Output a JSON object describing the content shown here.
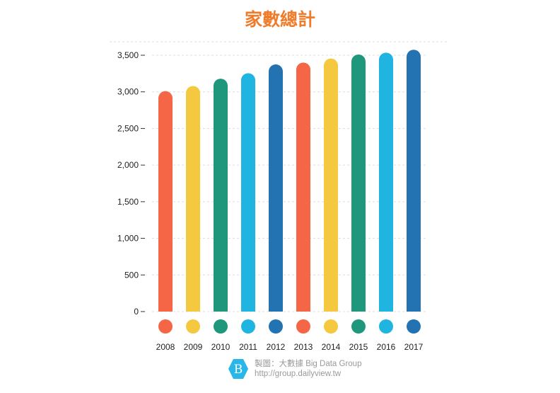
{
  "chart_data": {
    "type": "bar",
    "title": "家數總計",
    "categories": [
      "2008",
      "2009",
      "2010",
      "2011",
      "2012",
      "2013",
      "2014",
      "2015",
      "2016",
      "2017"
    ],
    "values": [
      3010,
      3080,
      3180,
      3255,
      3375,
      3400,
      3455,
      3510,
      3535,
      3575
    ],
    "colors": [
      "#f46645",
      "#f4c93f",
      "#1e977d",
      "#1fb5e0",
      "#2373b2",
      "#f46645",
      "#f4c93f",
      "#1e977d",
      "#1fb5e0",
      "#2373b2"
    ],
    "ylim": [
      0,
      3500
    ],
    "yticks": [
      "0",
      "500",
      "1,000",
      "1,500",
      "2,000",
      "2,500",
      "3,000",
      "3,500"
    ],
    "grid": true,
    "xlabel": "",
    "ylabel": ""
  },
  "credit": {
    "line1": "製圖：大數據 Big Data Group",
    "line2": "http://group.dailyview.tw",
    "logo_color": "#29b6e8"
  }
}
